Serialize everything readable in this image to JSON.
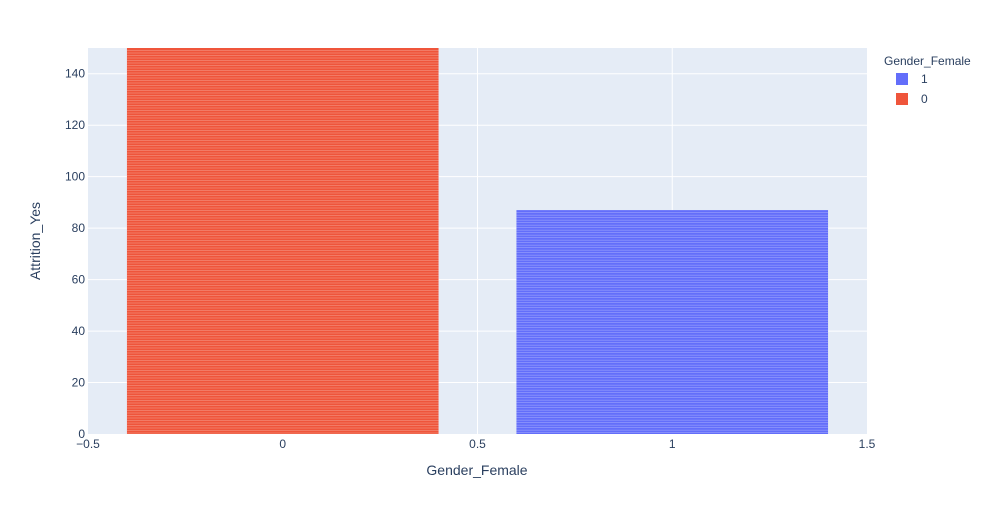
{
  "chart_data": {
    "type": "bar",
    "title": "",
    "xlabel": "Gender_Female",
    "ylabel": "Attrition_Yes",
    "xlim": [
      -0.5,
      1.5
    ],
    "ylim": [
      0,
      150
    ],
    "xticks": [
      "−0.5",
      "0",
      "0.5",
      "1",
      "1.5"
    ],
    "xtick_values": [
      -0.5,
      0,
      0.5,
      1,
      1.5
    ],
    "yticks": [
      "0",
      "20",
      "40",
      "60",
      "80",
      "100",
      "120",
      "140"
    ],
    "ytick_values": [
      0,
      20,
      40,
      60,
      80,
      100,
      120,
      140
    ],
    "grid": true,
    "legend": {
      "title": "Gender_Female",
      "placement": "top-right",
      "entries": [
        {
          "label": "1",
          "color": "#636efa"
        },
        {
          "label": "0",
          "color": "#ef553b"
        }
      ]
    },
    "series": [
      {
        "name": "1",
        "x": 1,
        "value": 87,
        "color": "#636efa"
      },
      {
        "name": "0",
        "x": 0,
        "value": 150,
        "color": "#ef553b"
      }
    ],
    "plot_background": "#e5ecf6",
    "gridline_color": "#ffffff"
  }
}
